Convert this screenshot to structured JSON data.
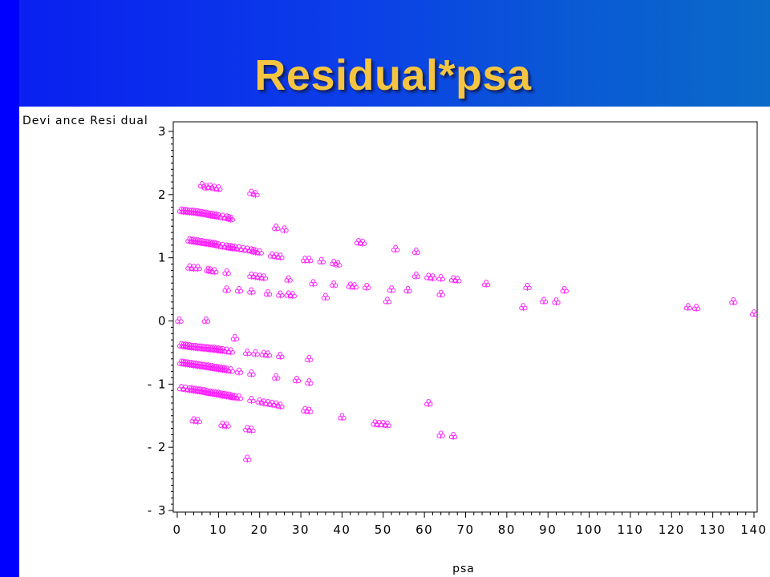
{
  "slide": {
    "title": "Residual*psa"
  },
  "colors": {
    "background_left": "#0000ff",
    "background_right": "#0a6ac8",
    "title": "#f5c542",
    "marker": "#ff22ff"
  },
  "chart_data": {
    "type": "scatter",
    "title": "",
    "xlabel": "psa",
    "ylabel": "Devi ance Resi dual",
    "xlim": [
      0,
      140
    ],
    "ylim": [
      -3,
      3
    ],
    "x_ticks": [
      0,
      10,
      20,
      30,
      40,
      50,
      60,
      70,
      80,
      90,
      100,
      110,
      120,
      130,
      140
    ],
    "y_ticks": [
      -3,
      -2,
      -1,
      0,
      1,
      2,
      3
    ],
    "x_tick_labels": [
      "0",
      "10",
      "20",
      "30",
      "40",
      "50",
      "60",
      "70",
      "80",
      "90",
      "100",
      "110",
      "120",
      "130",
      "140"
    ],
    "y_tick_labels": [
      "- 3",
      "- 2",
      "- 1",
      "0",
      "1",
      "2",
      "3"
    ],
    "grid": false,
    "legend": "none",
    "marker": "clover",
    "series": [
      {
        "points": [
          [
            6,
            2.15
          ],
          [
            7,
            2.12
          ],
          [
            8,
            2.13
          ],
          [
            9,
            2.11
          ],
          [
            10,
            2.1
          ],
          [
            18,
            2.03
          ],
          [
            19,
            2.01
          ],
          [
            1,
            1.75
          ],
          [
            1.5,
            1.74
          ],
          [
            2,
            1.74
          ],
          [
            2.5,
            1.74
          ],
          [
            3,
            1.73
          ],
          [
            3.5,
            1.73
          ],
          [
            4,
            1.73
          ],
          [
            4.5,
            1.72
          ],
          [
            5,
            1.72
          ],
          [
            5.5,
            1.71
          ],
          [
            6,
            1.71
          ],
          [
            6.5,
            1.7
          ],
          [
            7,
            1.7
          ],
          [
            7.5,
            1.69
          ],
          [
            8,
            1.68
          ],
          [
            8.5,
            1.68
          ],
          [
            9,
            1.67
          ],
          [
            9.5,
            1.67
          ],
          [
            10,
            1.66
          ],
          [
            11,
            1.65
          ],
          [
            12,
            1.64
          ],
          [
            12.5,
            1.63
          ],
          [
            13,
            1.62
          ],
          [
            24,
            1.48
          ],
          [
            26,
            1.45
          ],
          [
            3,
            1.28
          ],
          [
            3.5,
            1.27
          ],
          [
            4,
            1.27
          ],
          [
            4.5,
            1.26
          ],
          [
            5,
            1.26
          ],
          [
            5.5,
            1.25
          ],
          [
            6,
            1.25
          ],
          [
            6.5,
            1.24
          ],
          [
            7,
            1.24
          ],
          [
            7.5,
            1.23
          ],
          [
            8,
            1.23
          ],
          [
            8.5,
            1.22
          ],
          [
            9,
            1.22
          ],
          [
            9.5,
            1.21
          ],
          [
            10,
            1.2
          ],
          [
            11,
            1.19
          ],
          [
            12,
            1.18
          ],
          [
            12.5,
            1.17
          ],
          [
            13,
            1.17
          ],
          [
            13.5,
            1.16
          ],
          [
            14,
            1.16
          ],
          [
            15,
            1.15
          ],
          [
            16,
            1.14
          ],
          [
            17,
            1.13
          ],
          [
            18,
            1.12
          ],
          [
            18.5,
            1.11
          ],
          [
            19,
            1.1
          ],
          [
            20,
            1.09
          ],
          [
            44,
            1.25
          ],
          [
            45,
            1.24
          ],
          [
            53,
            1.14
          ],
          [
            58,
            1.1
          ],
          [
            23,
            1.04
          ],
          [
            24,
            1.03
          ],
          [
            25,
            1.02
          ],
          [
            31,
            0.97
          ],
          [
            32,
            0.97
          ],
          [
            35,
            0.95
          ],
          [
            38,
            0.92
          ],
          [
            39,
            0.9
          ],
          [
            3,
            0.85
          ],
          [
            4,
            0.84
          ],
          [
            5,
            0.84
          ],
          [
            7.5,
            0.81
          ],
          [
            8,
            0.8
          ],
          [
            9,
            0.79
          ],
          [
            12,
            0.77
          ],
          [
            18,
            0.72
          ],
          [
            19,
            0.71
          ],
          [
            20,
            0.7
          ],
          [
            21,
            0.69
          ],
          [
            27,
            0.66
          ],
          [
            33,
            0.6
          ],
          [
            38,
            0.58
          ],
          [
            42,
            0.56
          ],
          [
            43,
            0.55
          ],
          [
            46,
            0.54
          ],
          [
            58,
            0.72
          ],
          [
            61,
            0.7
          ],
          [
            62,
            0.69
          ],
          [
            64,
            0.68
          ],
          [
            67,
            0.66
          ],
          [
            68,
            0.65
          ],
          [
            75,
            0.59
          ],
          [
            85,
            0.54
          ],
          [
            12,
            0.5
          ],
          [
            15,
            0.49
          ],
          [
            18,
            0.47
          ],
          [
            22,
            0.44
          ],
          [
            25,
            0.42
          ],
          [
            27,
            0.42
          ],
          [
            28,
            0.41
          ],
          [
            36,
            0.38
          ],
          [
            52,
            0.5
          ],
          [
            56,
            0.49
          ],
          [
            64,
            0.43
          ],
          [
            94,
            0.49
          ],
          [
            51,
            0.32
          ],
          [
            89,
            0.32
          ],
          [
            92,
            0.31
          ],
          [
            84,
            0.22
          ],
          [
            124,
            0.22
          ],
          [
            126,
            0.21
          ],
          [
            135,
            0.31
          ],
          [
            140,
            0.12
          ],
          [
            0.5,
            0.01
          ],
          [
            7,
            0.01
          ],
          [
            1,
            -0.38
          ],
          [
            1.5,
            -0.39
          ],
          [
            2,
            -0.39
          ],
          [
            2.5,
            -0.4
          ],
          [
            3,
            -0.4
          ],
          [
            3.5,
            -0.41
          ],
          [
            4,
            -0.41
          ],
          [
            4.5,
            -0.41
          ],
          [
            5,
            -0.42
          ],
          [
            5.5,
            -0.42
          ],
          [
            6,
            -0.42
          ],
          [
            6.5,
            -0.43
          ],
          [
            7,
            -0.43
          ],
          [
            7.5,
            -0.43
          ],
          [
            8,
            -0.44
          ],
          [
            8.5,
            -0.44
          ],
          [
            9,
            -0.44
          ],
          [
            9.5,
            -0.45
          ],
          [
            10,
            -0.45
          ],
          [
            10.5,
            -0.46
          ],
          [
            11,
            -0.46
          ],
          [
            12,
            -0.47
          ],
          [
            13,
            -0.48
          ],
          [
            14,
            -0.27
          ],
          [
            17,
            -0.5
          ],
          [
            19,
            -0.51
          ],
          [
            21,
            -0.52
          ],
          [
            22,
            -0.53
          ],
          [
            25,
            -0.55
          ],
          [
            32,
            -0.6
          ],
          [
            1,
            -0.66
          ],
          [
            1.5,
            -0.66
          ],
          [
            2,
            -0.67
          ],
          [
            2.5,
            -0.67
          ],
          [
            3,
            -0.68
          ],
          [
            3.5,
            -0.68
          ],
          [
            4,
            -0.69
          ],
          [
            4.5,
            -0.69
          ],
          [
            5,
            -0.7
          ],
          [
            5.5,
            -0.7
          ],
          [
            6,
            -0.71
          ],
          [
            6.5,
            -0.71
          ],
          [
            7,
            -0.72
          ],
          [
            7.5,
            -0.72
          ],
          [
            8,
            -0.73
          ],
          [
            8.5,
            -0.73
          ],
          [
            9,
            -0.74
          ],
          [
            9.5,
            -0.74
          ],
          [
            10,
            -0.75
          ],
          [
            10.5,
            -0.75
          ],
          [
            11,
            -0.76
          ],
          [
            11.5,
            -0.76
          ],
          [
            12,
            -0.77
          ],
          [
            13,
            -0.78
          ],
          [
            15,
            -0.8
          ],
          [
            18,
            -0.83
          ],
          [
            24,
            -0.89
          ],
          [
            29,
            -0.93
          ],
          [
            32,
            -0.97
          ],
          [
            1,
            -1.06
          ],
          [
            2,
            -1.07
          ],
          [
            3,
            -1.08
          ],
          [
            3.5,
            -1.08
          ],
          [
            4,
            -1.09
          ],
          [
            4.5,
            -1.09
          ],
          [
            5,
            -1.1
          ],
          [
            5.5,
            -1.1
          ],
          [
            6,
            -1.11
          ],
          [
            6.5,
            -1.11
          ],
          [
            7,
            -1.12
          ],
          [
            7.5,
            -1.13
          ],
          [
            8,
            -1.13
          ],
          [
            8.5,
            -1.14
          ],
          [
            9,
            -1.14
          ],
          [
            9.5,
            -1.15
          ],
          [
            10,
            -1.15
          ],
          [
            10.5,
            -1.16
          ],
          [
            11,
            -1.17
          ],
          [
            11.5,
            -1.17
          ],
          [
            12,
            -1.18
          ],
          [
            12.5,
            -1.18
          ],
          [
            13,
            -1.19
          ],
          [
            13.5,
            -1.2
          ],
          [
            14,
            -1.2
          ],
          [
            15,
            -1.21
          ],
          [
            18,
            -1.25
          ],
          [
            20,
            -1.27
          ],
          [
            21,
            -1.29
          ],
          [
            22,
            -1.3
          ],
          [
            23,
            -1.31
          ],
          [
            24,
            -1.32
          ],
          [
            25,
            -1.34
          ],
          [
            31,
            -1.41
          ],
          [
            32,
            -1.42
          ],
          [
            40,
            -1.52
          ],
          [
            61,
            -1.3
          ],
          [
            4,
            -1.57
          ],
          [
            5,
            -1.58
          ],
          [
            11,
            -1.64
          ],
          [
            12,
            -1.65
          ],
          [
            17,
            -1.71
          ],
          [
            18,
            -1.72
          ],
          [
            48,
            -1.62
          ],
          [
            49,
            -1.63
          ],
          [
            50,
            -1.63
          ],
          [
            51,
            -1.64
          ],
          [
            64,
            -1.8
          ],
          [
            67,
            -1.82
          ],
          [
            17,
            -2.18
          ]
        ]
      }
    ]
  }
}
